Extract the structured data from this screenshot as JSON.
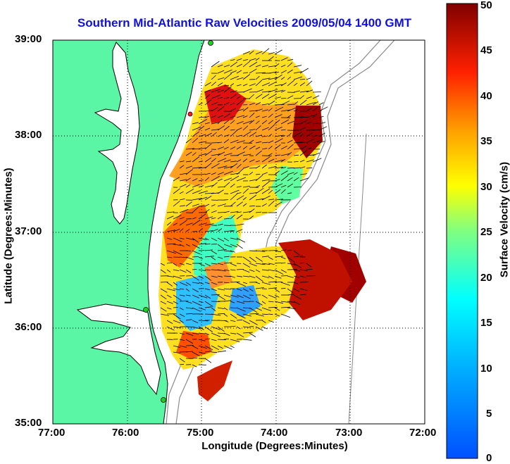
{
  "map": {
    "title": "Southern Mid-Atlantic Raw Velocities 2009/05/04 1400 GMT",
    "xlabel": "Longitude (Degrees:Minutes)",
    "ylabel": "Latitude (Degrees:Minutes)",
    "x_ticks": [
      "77:00",
      "76:00",
      "75:00",
      "74:00",
      "73:00",
      "72:00"
    ],
    "y_ticks": [
      "39:00",
      "38:00",
      "37:00",
      "36:00",
      "35:00"
    ],
    "lon_range": [
      -77,
      -72
    ],
    "lat_range": [
      35,
      39
    ],
    "colors": {
      "land": "#5af5a5",
      "water": "#ffffff",
      "arrows": "#000000"
    }
  },
  "colorbar": {
    "label": "Surface Velocity (cm/s)",
    "ticks": [
      "50",
      "45",
      "40",
      "35",
      "30",
      "25",
      "20",
      "15",
      "10",
      "5",
      "0"
    ],
    "range": [
      0,
      50
    ],
    "colormap": "jet"
  }
}
